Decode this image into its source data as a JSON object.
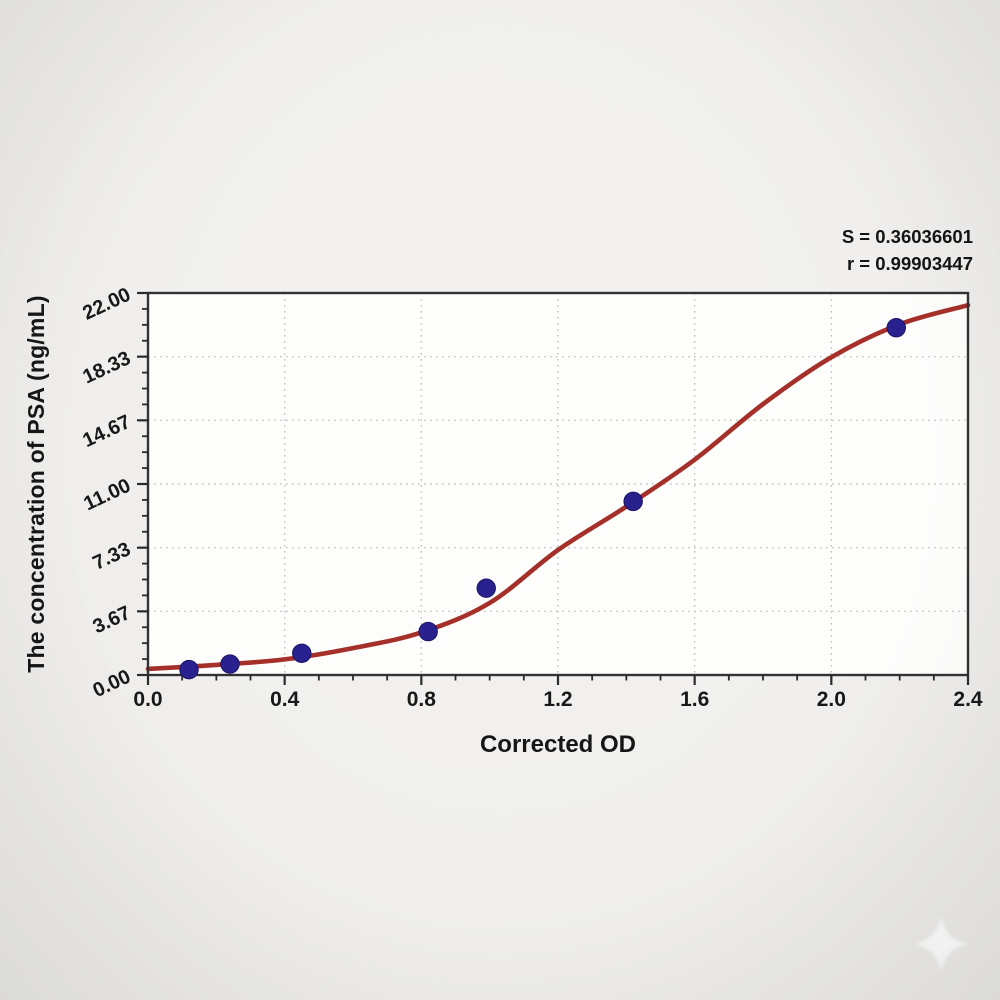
{
  "chart_data": {
    "type": "scatter",
    "title": "",
    "xlabel": "Corrected OD",
    "ylabel": "The concentration of PSA (ng/mL)",
    "xlim": [
      0.0,
      2.4
    ],
    "ylim": [
      0.0,
      22.0
    ],
    "grid": true,
    "legend": null,
    "x_major_ticks": [
      0.0,
      0.4,
      0.8,
      1.2,
      1.6,
      2.0,
      2.4
    ],
    "x_tick_labels": [
      "0.0",
      "0.4",
      "0.8",
      "1.2",
      "1.6",
      "2.0",
      "2.4"
    ],
    "x_minor_step": 0.1,
    "y_major_ticks": [
      0.0,
      3.6667,
      7.3333,
      11.0,
      14.6667,
      18.3333,
      22.0
    ],
    "y_tick_labels": [
      "0.00",
      "3.67",
      "7.33",
      "11.00",
      "14.67",
      "18.33",
      "22.00"
    ],
    "y_minor_divisions": 4,
    "series": [
      {
        "name": "standard-points",
        "kind": "scatter",
        "color": "#29218e",
        "edge_color": "#1b1566",
        "points": [
          [
            0.12,
            0.31
          ],
          [
            0.24,
            0.63
          ],
          [
            0.45,
            1.25
          ],
          [
            0.82,
            2.5
          ],
          [
            0.99,
            5.0
          ],
          [
            1.42,
            10.0
          ],
          [
            2.19,
            20.0
          ]
        ]
      },
      {
        "name": "fit-curve",
        "kind": "line",
        "color": "#a5302a",
        "points": [
          [
            0.0,
            0.35
          ],
          [
            0.2,
            0.58
          ],
          [
            0.4,
            0.9
          ],
          [
            0.6,
            1.55
          ],
          [
            0.8,
            2.45
          ],
          [
            1.0,
            4.15
          ],
          [
            1.2,
            7.2
          ],
          [
            1.4,
            9.7
          ],
          [
            1.6,
            12.4
          ],
          [
            1.8,
            15.6
          ],
          [
            2.0,
            18.3
          ],
          [
            2.2,
            20.2
          ],
          [
            2.4,
            21.3
          ]
        ]
      }
    ],
    "annotation": {
      "s_value": "S = 0.36036601",
      "r_value": "r = 0.99903447"
    },
    "colors": {
      "page_bg": "#f0efed",
      "plot_bg": "#fdfdfc",
      "frame": "#333333",
      "grid": "#c0c2c2",
      "tick": "#2a2a2a",
      "text": "#181818"
    }
  },
  "icons": {
    "sparkle": "four-point-star-watermark"
  }
}
